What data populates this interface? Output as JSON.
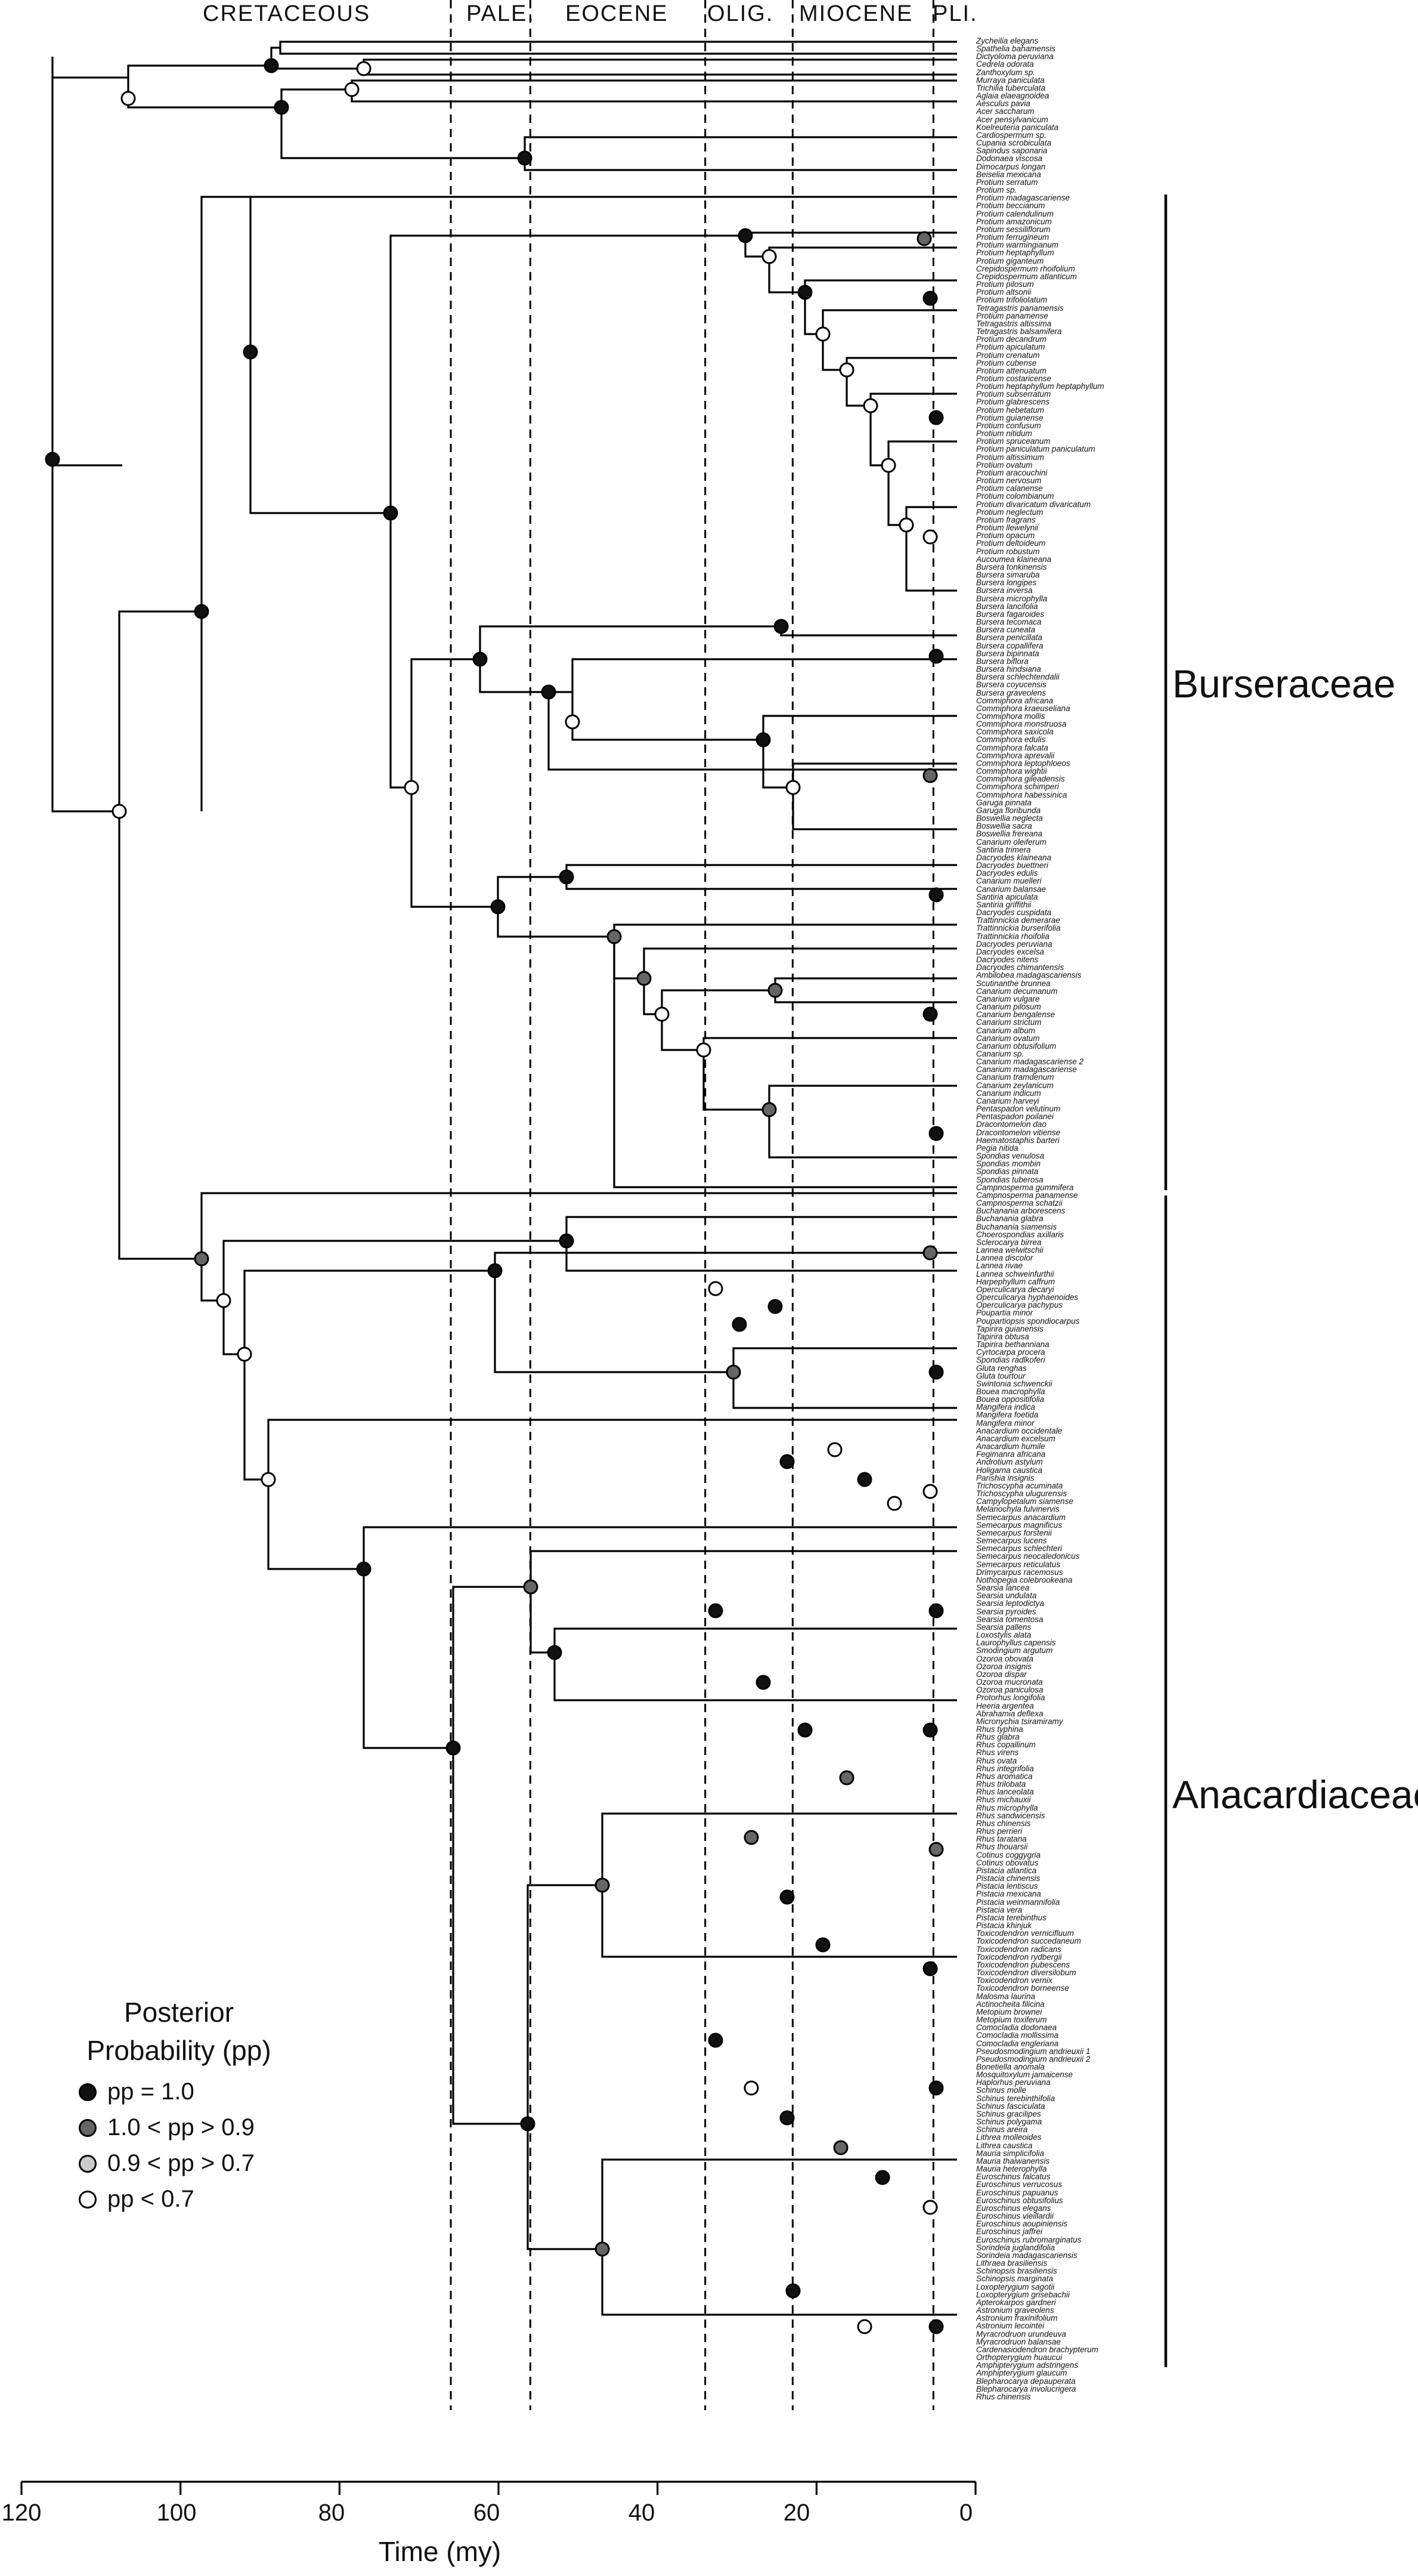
{
  "epochs": [
    {
      "name": "CRETACEOUS"
    },
    {
      "name": "PALE."
    },
    {
      "name": "EOCENE"
    },
    {
      "name": "OLIG."
    },
    {
      "name": "MIOCENE"
    },
    {
      "name": "PLI."
    }
  ],
  "epoch_boundaries_my": [
    66,
    56,
    34,
    23,
    5.3
  ],
  "axis": {
    "title": "Time (my)",
    "ticks": [
      "120",
      "100",
      "80",
      "60",
      "40",
      "20",
      "0"
    ],
    "range_my": [
      120,
      0
    ]
  },
  "clades": [
    {
      "name": "Burseraceae"
    },
    {
      "name": "Anacardiaceae"
    }
  ],
  "legend": {
    "title_line1": "Posterior",
    "title_line2": "Probability (pp)",
    "items": [
      {
        "label": "pp = 1.0",
        "color": "#111111"
      },
      {
        "label": "1.0 < pp > 0.9",
        "color": "#666666"
      },
      {
        "label": "0.9 < pp > 0.7",
        "color": "#cccccc"
      },
      {
        "label": "pp < 0.7",
        "color": "#ffffff"
      }
    ]
  },
  "key_nodes": [
    {
      "age_my": 116,
      "pp": "1.0",
      "clade": "root"
    },
    {
      "age_my": 108,
      "pp": "<0.7",
      "clade": "Burseraceae + Anacardiaceae"
    },
    {
      "age_my": 91,
      "pp": "1.0",
      "clade": "Burseraceae stem"
    },
    {
      "age_my": 96,
      "pp": "1.0 > 0.9",
      "clade": "Anacardiaceae stem"
    }
  ],
  "taxa": [
    "Zycheilia elegans",
    "Spathelia bahamensis",
    "Dictyoloma peruviana",
    "Cedrela odorata",
    "Zanthoxylum sp.",
    "Murraya paniculata",
    "Trichilia tuberculata",
    "Aglaia elaeagnoidea",
    "Aesculus pavia",
    "Acer saccharum",
    "Acer pensylvanicum",
    "Koelreuteria paniculata",
    "Cardiospermum sp.",
    "Cupania scrobiculata",
    "Sapindus saponaria",
    "Dodonaea viscosa",
    "Dimocarpus longan",
    "Beiselia mexicana",
    "Protium serratum",
    "Protium sp.",
    "Protium madagascariense",
    "Protium beccianum",
    "Protium calendulinum",
    "Protium amazonicum",
    "Protium sessiliflorum",
    "Protium ferrugineum",
    "Protium warmingianum",
    "Protium heptaphyllum",
    "Protium giganteum",
    "Crepidospermum rhoifolium",
    "Crepidospermum atlanticum",
    "Protium pilosum",
    "Protium altsonii",
    "Protium trifoliolatum",
    "Tetragastris panamensis",
    "Protium panamense",
    "Tetragastris altissima",
    "Tetragastris balsamifera",
    "Protium decandrum",
    "Protium apiculatum",
    "Protium crenatum",
    "Protium cubense",
    "Protium attenuatum",
    "Protium costaricense",
    "Protium heptaphyllum heptaphyllum",
    "Protium subserratum",
    "Protium glabrescens",
    "Protium hebetatum",
    "Protium guianense",
    "Protium confusum",
    "Protium nitidum",
    "Protium spruceanum",
    "Protium paniculatum paniculatum",
    "Protium altissimum",
    "Protium ovatum",
    "Protium aracouchini",
    "Protium nervosum",
    "Protium calanense",
    "Protium colombianum",
    "Protium divaricatum divaricatum",
    "Protium neglectum",
    "Protium fragrans",
    "Protium llewelynii",
    "Protium opacum",
    "Protium deltoideum",
    "Protium robustum",
    "Aucoumea klaineana",
    "Bursera tonkinensis",
    "Bursera simaruba",
    "Bursera longipes",
    "Bursera inversa",
    "Bursera microphylla",
    "Bursera lancifolia",
    "Bursera fagaroides",
    "Bursera tecomaca",
    "Bursera cuneata",
    "Bursera penicillata",
    "Bursera copallifera",
    "Bursera bipinnata",
    "Bursera biflora",
    "Bursera hindsiana",
    "Bursera schlechtendalii",
    "Bursera coyucensis",
    "Bursera graveolens",
    "Commiphora africana",
    "Commiphora kraeuseliana",
    "Commiphora mollis",
    "Commiphora monstruosa",
    "Commiphora saxicola",
    "Commiphora edulis",
    "Commiphora falcata",
    "Commiphora aprevalii",
    "Commiphora leptophloeos",
    "Commiphora wightii",
    "Commiphora gileadensis",
    "Commiphora schimperi",
    "Commiphora habessinica",
    "Garuga pinnata",
    "Garuga floribunda",
    "Boswellia neglecta",
    "Boswellia sacra",
    "Boswellia frereana",
    "Canarium oleiferum",
    "Santiria trimera",
    "Dacryodes klaineana",
    "Dacryodes buettneri",
    "Dacryodes edulis",
    "Canarium muelleri",
    "Canarium balansae",
    "Santiria apiculata",
    "Santiria griffithii",
    "Dacryodes cuspidata",
    "Trattinnickia demerarae",
    "Trattinnickia burserifolia",
    "Trattinnickia rhoifolia",
    "Dacryodes peruviana",
    "Dacryodes excelsa",
    "Dacryodes nitens",
    "Dacryodes chimantensis",
    "Ambilobea madagascariensis",
    "Scutinanthe brunnea",
    "Canarium decumanum",
    "Canarium vulgare",
    "Canarium pilosum",
    "Canarium bengalense",
    "Canarium strictum",
    "Canarium album",
    "Canarium ovatum",
    "Canarium obtusifolium",
    "Canarium sp.",
    "Canarium madagascariense 2",
    "Canarium madagascariense",
    "Canarium tramdenum",
    "Canarium zeylanicum",
    "Canarium indicum",
    "Canarium harveyi",
    "Pentaspadon velutinum",
    "Pentaspadon poilanei",
    "Dracontomelon dao",
    "Dracontomelon vitiense",
    "Haematostaphis barteri",
    "Pegia nitida",
    "Spondias venulosa",
    "Spondias mombin",
    "Spondias pinnata",
    "Spondias tuberosa",
    "Campnosperma gummifera",
    "Campnosperma panamense",
    "Campnosperma schatzii",
    "Buchanania arborescens",
    "Buchanania glabra",
    "Buchanania siamensis",
    "Choerospondias axillaris",
    "Sclerocarya birrea",
    "Lannea welwitschii",
    "Lannea discolor",
    "Lannea rivae",
    "Lannea schweinfurthii",
    "Harpephyllum caffrum",
    "Operculicarya decaryi",
    "Operculicarya hyphaenoides",
    "Operculicarya pachypus",
    "Poupartia minor",
    "Poupartiopsis spondiocarpus",
    "Tapirira guianensis",
    "Tapirira obtusa",
    "Tapirira bethanniana",
    "Cyrtocarpa procera",
    "Spondias radlkoferi",
    "Gluta renghas",
    "Gluta tourtour",
    "Swintonia schwenckii",
    "Bouea macrophylla",
    "Bouea oppositifolia",
    "Mangifera indica",
    "Mangifera foetida",
    "Mangifera minor",
    "Anacardium occidentale",
    "Anacardium excelsum",
    "Anacardium humile",
    "Fegimanra africana",
    "Androtium astylum",
    "Holigarna caustica",
    "Parishia insignis",
    "Trichoscypha acuminata",
    "Trichoscypha ulugurensis",
    "Campylopetalum siamense",
    "Melanochyla fulvinervis",
    "Semecarpus anacardium",
    "Semecarpus magnificus",
    "Semecarpus forstenii",
    "Semecarpus lucens",
    "Semecarpus schlechteri",
    "Semecarpus neocaledonicus",
    "Semecarpus reticulatus",
    "Drimycarpus racemosus",
    "Nothopegia colebrookeana",
    "Searsia lancea",
    "Searsia undulata",
    "Searsia leptodictya",
    "Searsia pyroides",
    "Searsia tomentosa",
    "Searsia pallens",
    "Loxostylis alata",
    "Laurophyllus capensis",
    "Smodingium argutum",
    "Ozoroa obovata",
    "Ozoroa insignis",
    "Ozoroa dispar",
    "Ozoroa mucronata",
    "Ozoroa paniculosa",
    "Protorhus longifolia",
    "Heeria argentea",
    "Abrahamia deflexa",
    "Micronychia tsiramiramy",
    "Rhus typhina",
    "Rhus glabra",
    "Rhus copallinum",
    "Rhus virens",
    "Rhus ovata",
    "Rhus integrifolia",
    "Rhus aromatica",
    "Rhus trilobata",
    "Rhus lanceolata",
    "Rhus michauxii",
    "Rhus microphylla",
    "Rhus sandwicensis",
    "Rhus chinensis",
    "Rhus perrieri",
    "Rhus taratana",
    "Rhus thouarsii",
    "Cotinus coggygria",
    "Cotinus obovatus",
    "Pistacia atlantica",
    "Pistacia chinensis",
    "Pistacia lentiscus",
    "Pistacia mexicana",
    "Pistacia weinmannifolia",
    "Pistacia vera",
    "Pistacia terebinthus",
    "Pistacia khinjuk",
    "Toxicodendron vernicifluum",
    "Toxicodendron succedaneum",
    "Toxicodendron radicans",
    "Toxicodendron rydbergii",
    "Toxicodendron pubescens",
    "Toxicodendron diversilobum",
    "Toxicodendron vernix",
    "Toxicodendron borneense",
    "Malosma laurina",
    "Actinocheita filicina",
    "Metopium brownei",
    "Metopium toxiferum",
    "Comocladia dodonaea",
    "Comocladia mollissima",
    "Comocladia engleriana",
    "Pseudosmodingium andrieuxii 1",
    "Pseudosmodingium andrieuxii 2",
    "Bonetiella anomala",
    "Mosquitoxylum jamaicense",
    "Haplorhus peruviana",
    "Schinus molle",
    "Schinus terebinthifolia",
    "Schinus fasciculata",
    "Schinus gracilipes",
    "Schinus polygama",
    "Schinus areira",
    "Lithrea molleoides",
    "Lithrea caustica",
    "Mauria simplicifolia",
    "Mauria thaiwanensis",
    "Mauria heterophylla",
    "Euroschinus falcatus",
    "Euroschinus verrucosus",
    "Euroschinus papuanus",
    "Euroschinus obtusifolius",
    "Euroschinus elegans",
    "Euroschinus vieillardii",
    "Euroschinus aoupiniensis",
    "Euroschinus jaffrei",
    "Euroschinus rubromarginatus",
    "Sorindeia juglandifolia",
    "Sorindeia madagascariensis",
    "Lithraea brasiliensis",
    "Schinopsis brasiliensis",
    "Schinopsis marginata",
    "Loxopterygium sagotii",
    "Loxopterygium grisebachii",
    "Apterokarpos gardneri",
    "Astronium graveolens",
    "Astronium fraxinifolium",
    "Astronium lecointei",
    "Myracrodruon urundeuva",
    "Myracrodruon balansae",
    "Cardenasiodendron brachypterum",
    "Orthopterygium huaucui",
    "Amphipterygium adstringens",
    "Amphipterygium glaucum",
    "Blepharocarya depauperata",
    "Blepharocarya involucrigera",
    "Rhus chinensis"
  ]
}
